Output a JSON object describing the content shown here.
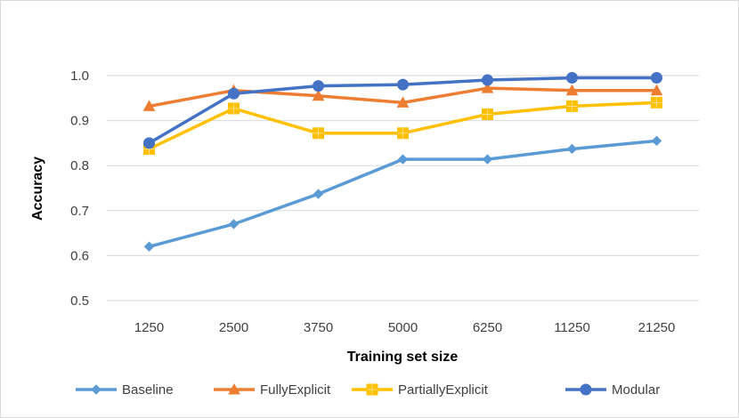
{
  "chart_data": {
    "type": "line",
    "title": "",
    "xlabel": "Training set size",
    "ylabel": "Accuracy",
    "categories": [
      "1250",
      "2500",
      "3750",
      "5000",
      "6250",
      "11250",
      "21250"
    ],
    "ylim": [
      0.5,
      1.0
    ],
    "yticks": [
      "0.5",
      "0.6",
      "0.7",
      "0.8",
      "0.9",
      "1.0"
    ],
    "grid": true,
    "legend_position": "bottom",
    "series": [
      {
        "name": "Baseline",
        "color": "#5B9BD5",
        "marker": "diamond",
        "values": [
          0.62,
          0.67,
          0.737,
          0.814,
          0.814,
          0.837,
          0.855
        ]
      },
      {
        "name": "FullyExplicit",
        "color": "#ED7D31",
        "marker": "triangle",
        "values": [
          0.932,
          0.967,
          0.955,
          0.94,
          0.972,
          0.967,
          0.967
        ]
      },
      {
        "name": "PartiallyExplicit",
        "color": "#FFC000",
        "marker": "square-plus",
        "values": [
          0.837,
          0.927,
          0.872,
          0.872,
          0.914,
          0.932,
          0.94
        ]
      },
      {
        "name": "Modular",
        "color": "#4472C4",
        "marker": "circle",
        "values": [
          0.85,
          0.96,
          0.977,
          0.98,
          0.99,
          0.995,
          0.995
        ]
      }
    ]
  }
}
